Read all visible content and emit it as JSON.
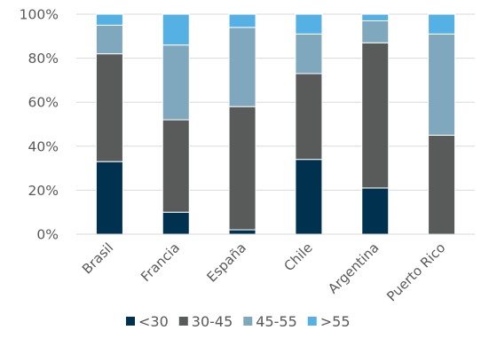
{
  "chart_data": {
    "type": "bar",
    "stacked": true,
    "percent": true,
    "categories": [
      "Brasil",
      "Francia",
      "España",
      "Chile",
      "Argentina",
      "Puerto Rico"
    ],
    "series": [
      {
        "name": "<30",
        "color": "#00324f",
        "values": [
          33,
          10,
          2,
          34,
          21,
          0
        ]
      },
      {
        "name": "30-45",
        "color": "#585b59",
        "values": [
          49,
          42,
          56,
          39,
          66,
          45
        ]
      },
      {
        "name": "45-55",
        "color": "#7fa8bf",
        "values": [
          13,
          34,
          36,
          18,
          10,
          46
        ]
      },
      {
        "name": ">55",
        "color": "#55b0e3",
        "values": [
          5,
          14,
          6,
          9,
          3,
          9
        ]
      }
    ],
    "ylim": [
      0,
      100
    ],
    "yticks": [
      "0%",
      "20%",
      "40%",
      "60%",
      "80%",
      "100%"
    ],
    "legend_position": "bottom",
    "grid": true
  }
}
